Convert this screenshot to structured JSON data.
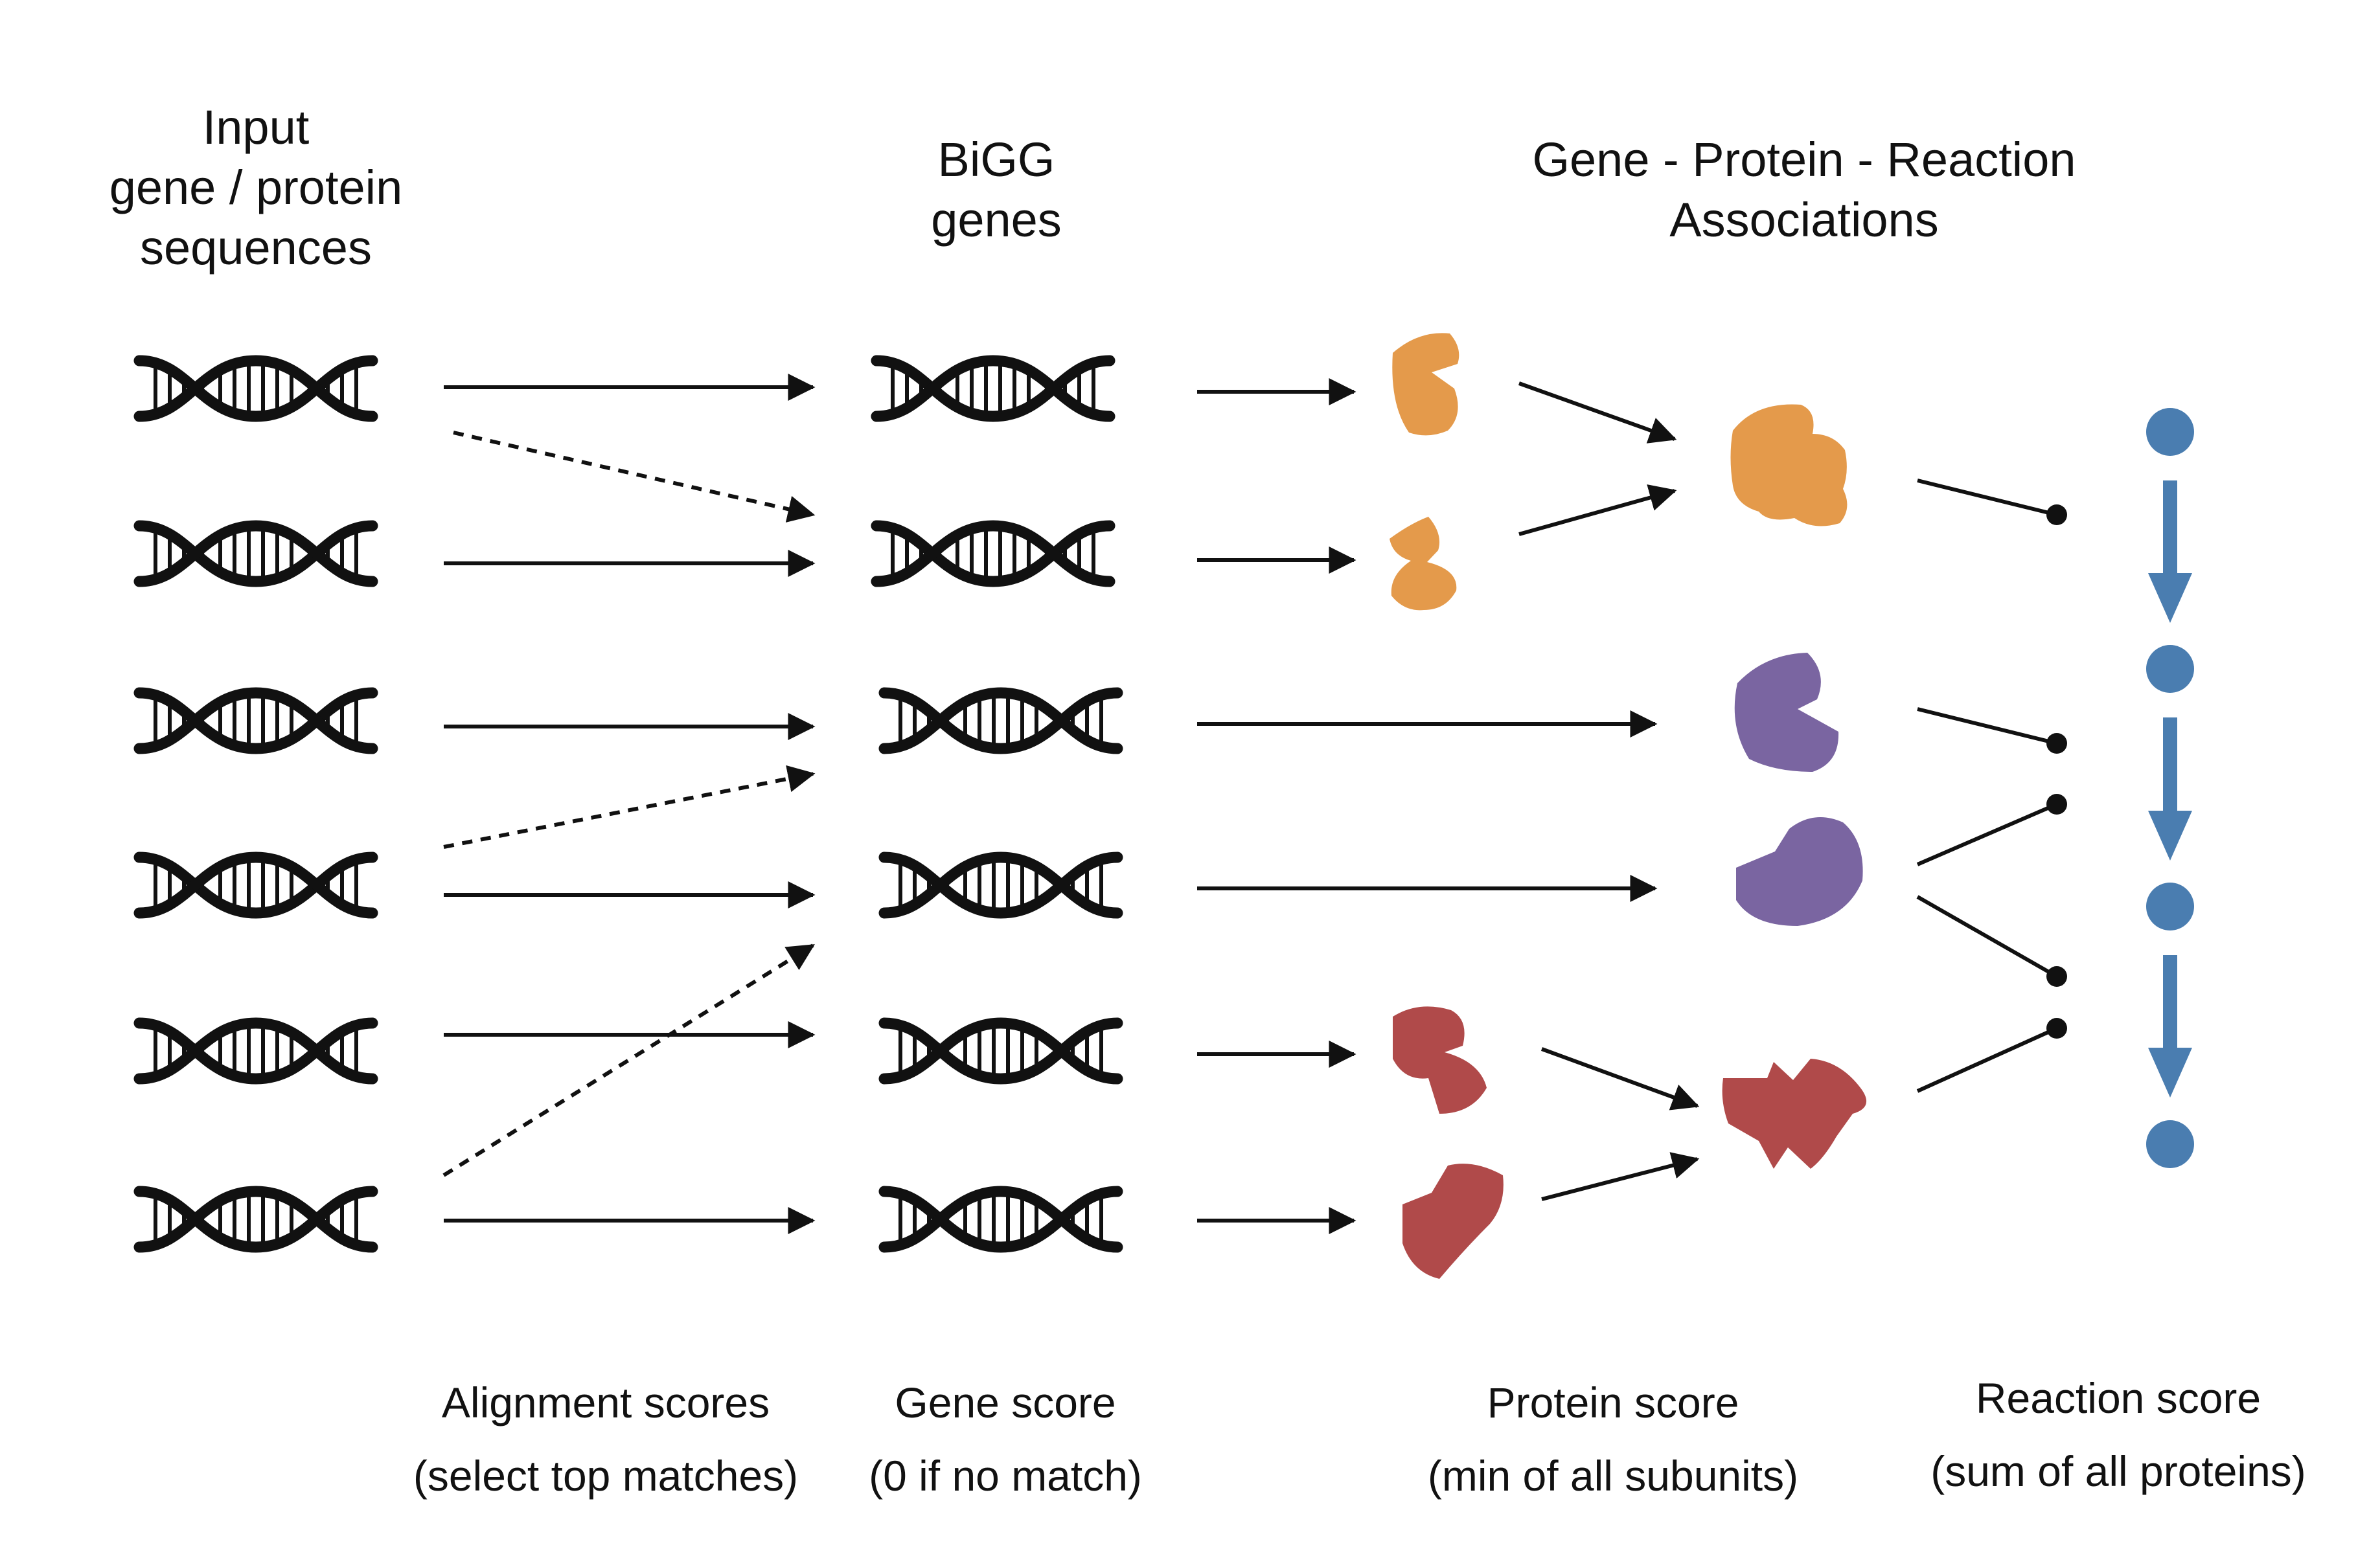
{
  "headers": {
    "input": [
      "Input",
      "gene / protein",
      "sequences"
    ],
    "bigg": [
      "BiGG",
      "genes"
    ],
    "gpr": [
      "Gene - Protein - Reaction",
      "Associations"
    ]
  },
  "captions": {
    "alignment": {
      "line1": "Alignment scores",
      "line2": "(select top matches)"
    },
    "gene": {
      "line1": "Gene score",
      "line2": "(0 if no match)"
    },
    "protein": {
      "line1": "Protein score",
      "line2": "(min of all subunits)"
    },
    "reaction": {
      "line1": "Reaction score",
      "line2": "(sum of all proteins)"
    }
  },
  "colors": {
    "orange": "#E49A4B",
    "purple": "#7A65A1",
    "red": "#B04A4A",
    "blue": "#4A7DB0",
    "ink": "#111111"
  },
  "icons": {
    "dna": "dna-helix-icon",
    "protein": "protein-blob-icon",
    "complex": "protein-complex-icon",
    "metabolite": "metabolite-node-icon"
  }
}
